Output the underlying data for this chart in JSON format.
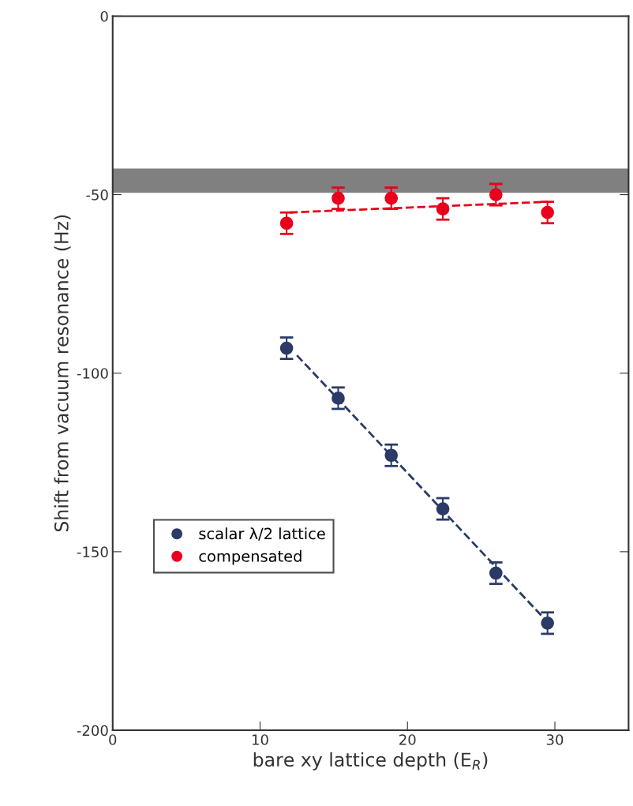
{
  "chart_data": {
    "type": "scatter",
    "xlabel": "bare xy lattice depth (E$_{R}$)",
    "ylabel": "Shift from vacuum resonance (Hz)",
    "xlim": [
      0,
      35
    ],
    "xticks": [
      0,
      10,
      20,
      30
    ],
    "ylim": [
      -200,
      0
    ],
    "yticks": [
      {
        "value": -200,
        "label": "-200"
      },
      {
        "value": -150,
        "label": "-150"
      },
      {
        "value": -100,
        "label": "-100"
      },
      {
        "value": -50,
        "label": "-50"
      },
      0
    ],
    "series": [
      {
        "name": "scalar λ/2 lattice",
        "color": "#2b3a67",
        "marker": "circle",
        "x": [
          11.8,
          15.3,
          18.9,
          22.4,
          26.0,
          29.5
        ],
        "values": [
          -93,
          -107,
          -123,
          -138,
          -156,
          -170
        ],
        "errors": [
          3,
          3,
          3,
          3,
          3,
          3
        ]
      },
      {
        "name": "compensated",
        "color": "#e8001c",
        "marker": "circle",
        "x": [
          11.8,
          15.3,
          18.9,
          22.4,
          26.0,
          29.5
        ],
        "values": [
          -58,
          -51,
          -51,
          -54,
          -50,
          -55
        ],
        "errors": [
          3,
          3,
          3,
          3,
          3,
          3
        ]
      },
      {
        "type": "line",
        "color": "#2b3a67",
        "line_style": "dashed",
        "x": [
          12.5,
          29.8
        ],
        "values": [
          -95,
          -171
        ]
      },
      {
        "type": "line",
        "color": "#e8001c",
        "line_style": "dashed",
        "x": [
          12,
          29.5
        ],
        "values": [
          -55,
          -52
        ]
      }
    ],
    "bands": [
      {
        "axis": "y",
        "from": -49.5,
        "to": -42.7,
        "color": "#808080"
      }
    ],
    "legend": "bottom left",
    "grid": false
  }
}
